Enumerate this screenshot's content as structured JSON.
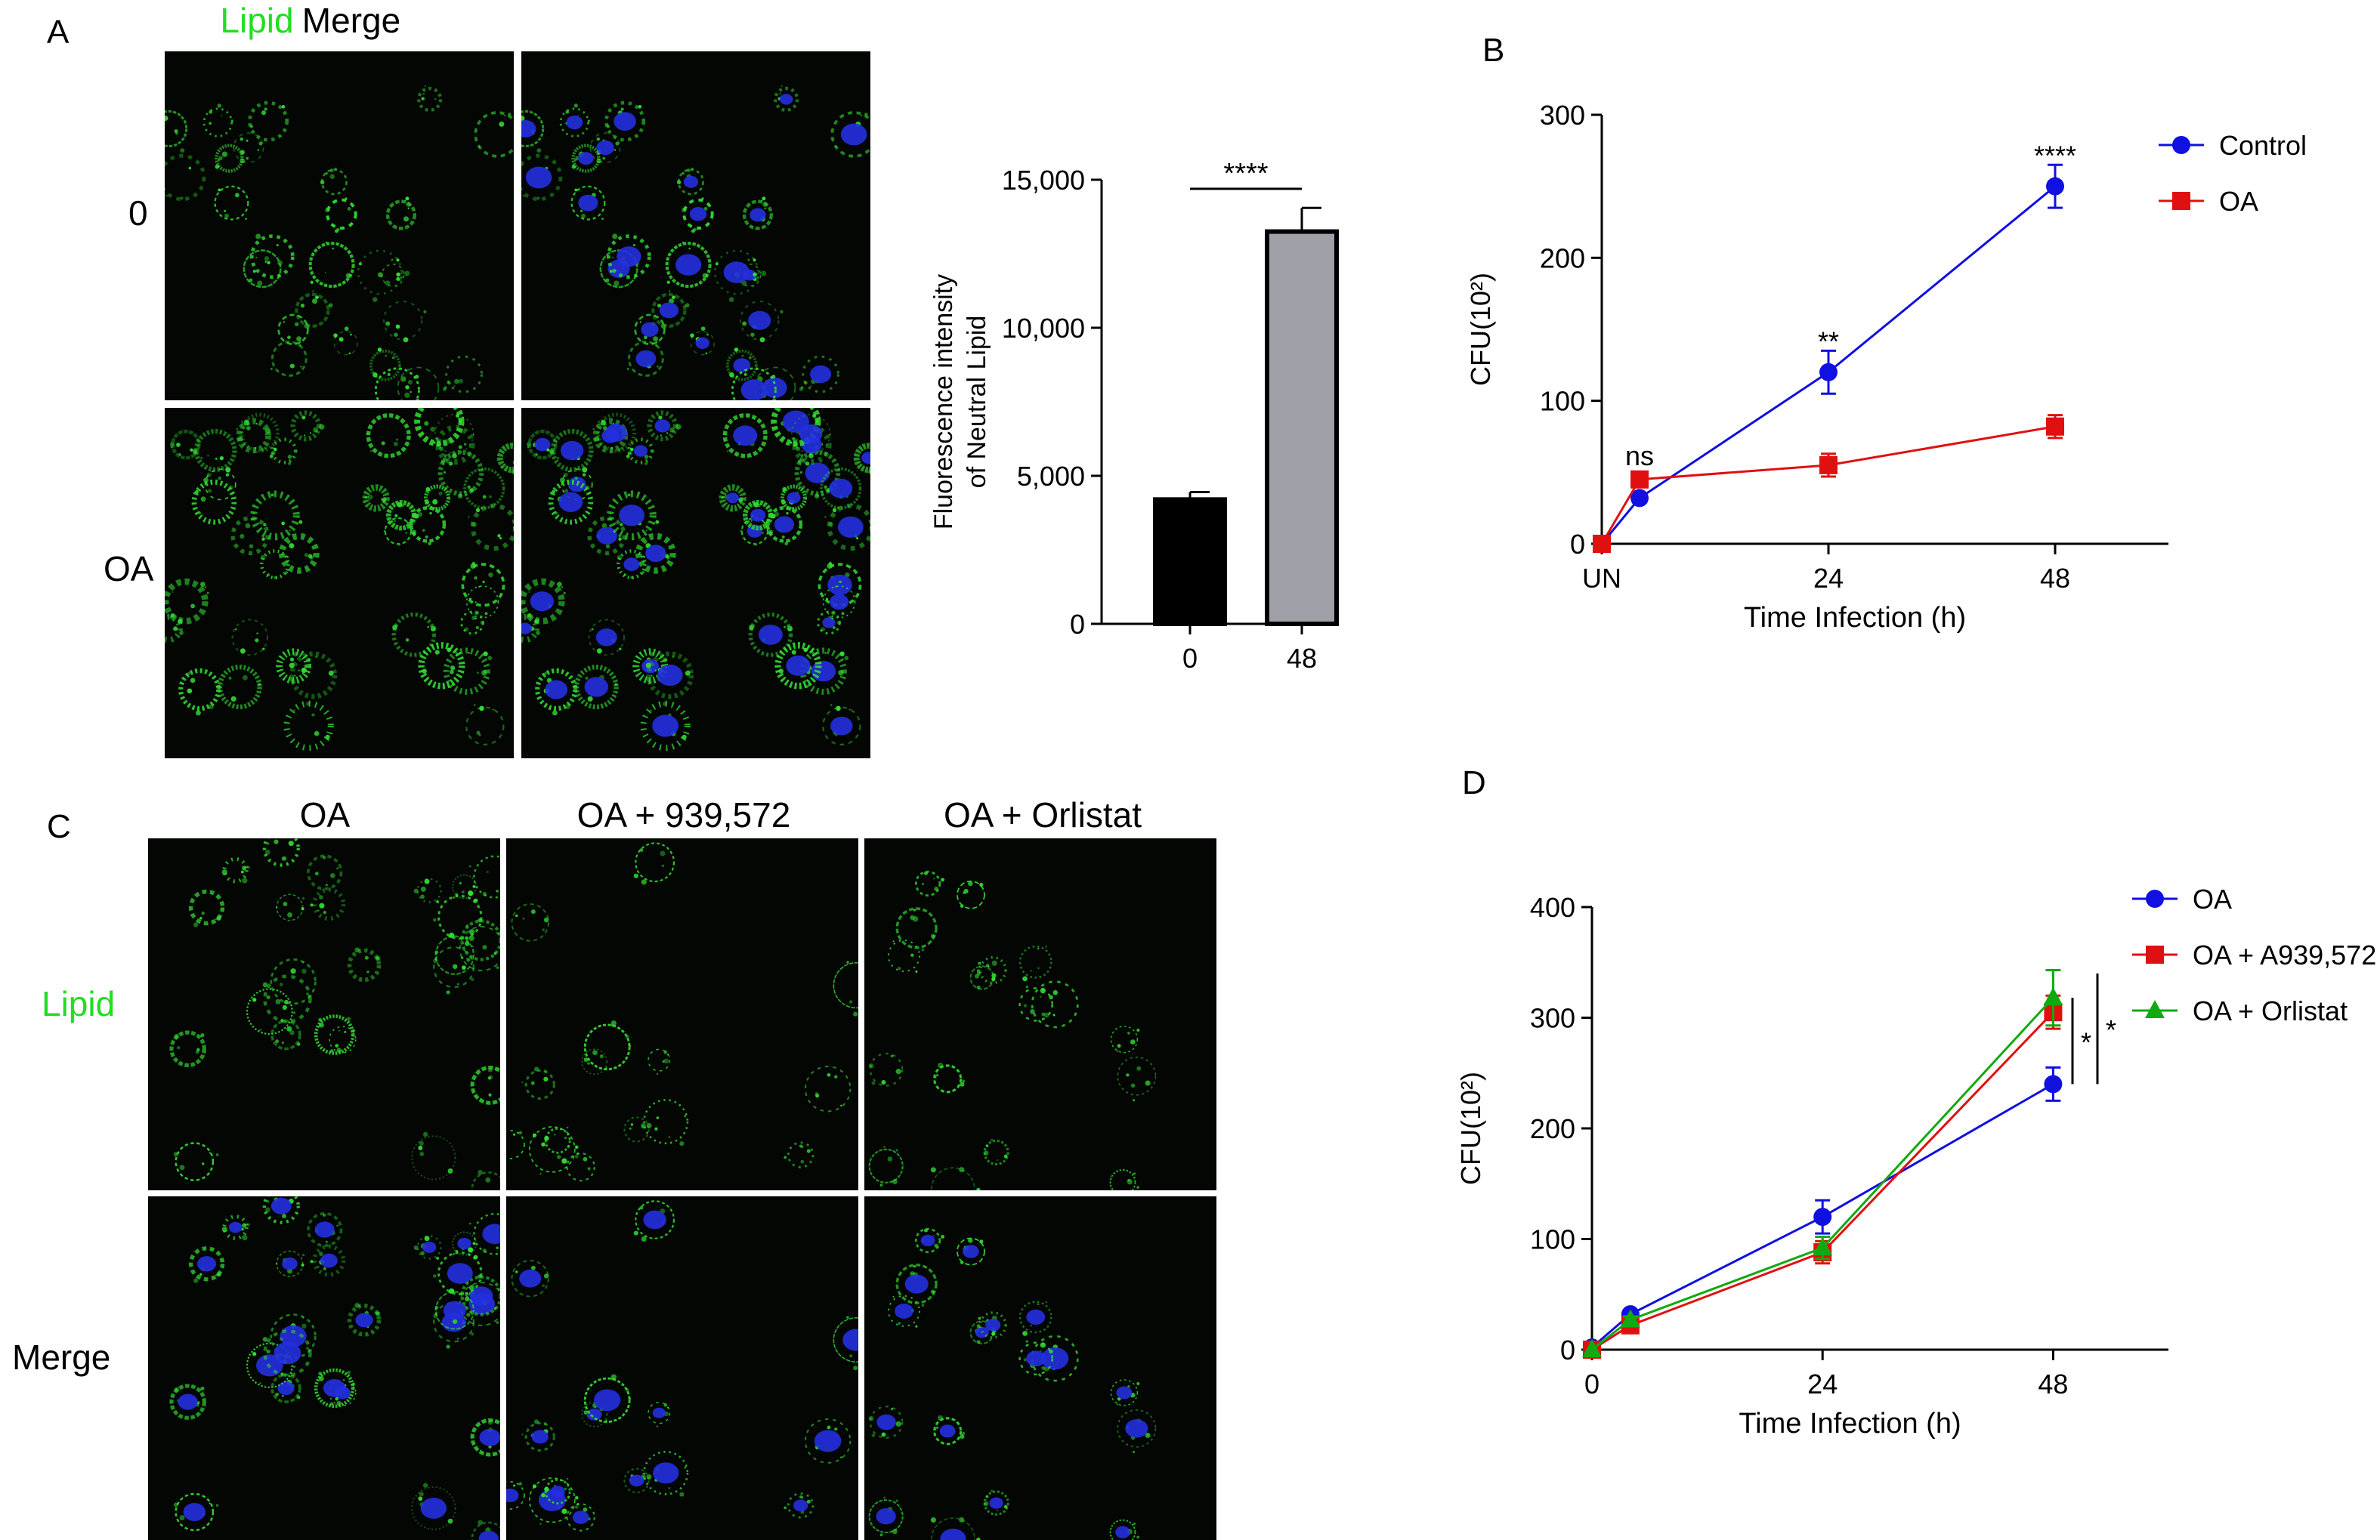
{
  "panels": {
    "A": {
      "letter": "A",
      "col_headers": [
        "Lipid",
        "Merge"
      ],
      "row_labels": [
        "0",
        "OA"
      ]
    },
    "B": {
      "letter": "B"
    },
    "C": {
      "letter": "C",
      "col_headers": [
        "OA",
        "OA + 939,572",
        "OA + Orlistat"
      ],
      "row_labels": [
        "Lipid",
        "Merge"
      ]
    },
    "D": {
      "letter": "D"
    }
  },
  "colors": {
    "lipid_label": "#22dd22",
    "lipid_stain": "#33dd33",
    "nucleus_stain": "#2430e0",
    "control": "#1010e0",
    "oa": "#e01010",
    "orlistat": "#10aa10",
    "bar_0": "#000000",
    "bar_48": "#a0a0a8"
  },
  "chart_data": [
    {
      "id": "A-bar",
      "type": "bar",
      "title": "",
      "xlabel": "",
      "ylabel": "Fluorescence intensity of Neutral Lipid",
      "ylabel_lines": [
        "Fluorescence intensity",
        "of Neutral Lipid"
      ],
      "categories": [
        "0",
        "48"
      ],
      "values": [
        4200,
        13250
      ],
      "errors": [
        250,
        800
      ],
      "ylim": [
        0,
        15000
      ],
      "yticks": [
        0,
        5000,
        10000,
        15000
      ],
      "ytick_labels": [
        "0",
        "5,000",
        "10,000",
        "15,000"
      ],
      "significance": [
        {
          "between": [
            "0",
            "48"
          ],
          "label": "****"
        }
      ],
      "grid": false
    },
    {
      "id": "B-line",
      "type": "line",
      "title": "",
      "xlabel": "Time Infection (h)",
      "ylabel": "CFU(10²)",
      "ylim": [
        0,
        300
      ],
      "yticks": [
        0,
        100,
        200,
        300
      ],
      "xlim": [
        0,
        60
      ],
      "xticks": [
        0,
        24,
        48
      ],
      "xtick_labels": [
        "UN",
        "24",
        "48"
      ],
      "legend": "top-right",
      "grid": false,
      "series": [
        {
          "name": "Control",
          "marker": "circle",
          "x": [
            0,
            4,
            24,
            48
          ],
          "y": [
            0,
            32,
            120,
            250
          ],
          "err": [
            0,
            3,
            15,
            15
          ]
        },
        {
          "name": "OA",
          "marker": "square",
          "x": [
            0,
            4,
            24,
            48
          ],
          "y": [
            0,
            45,
            55,
            82
          ],
          "err": [
            0,
            5,
            8,
            8
          ]
        }
      ],
      "annotations": [
        {
          "x": 4,
          "y": 55,
          "label": "ns"
        },
        {
          "x": 24,
          "y": 135,
          "label": "**"
        },
        {
          "x": 48,
          "y": 265,
          "label": "****"
        }
      ]
    },
    {
      "id": "D-line",
      "type": "line",
      "title": "",
      "xlabel": "Time Infection (h)",
      "ylabel": "CFU(10²)",
      "ylim": [
        0,
        400
      ],
      "yticks": [
        0,
        100,
        200,
        300,
        400
      ],
      "xlim": [
        0,
        60
      ],
      "xticks": [
        0,
        24,
        48
      ],
      "xtick_labels": [
        "0",
        "24",
        "48"
      ],
      "legend": "top-right",
      "grid": false,
      "series": [
        {
          "name": "OA",
          "marker": "circle",
          "x": [
            0,
            4,
            24,
            48
          ],
          "y": [
            2,
            32,
            120,
            240
          ],
          "err": [
            0,
            3,
            15,
            15
          ]
        },
        {
          "name": "OA + A939,572",
          "marker": "square",
          "x": [
            0,
            4,
            24,
            48
          ],
          "y": [
            0,
            22,
            88,
            305
          ],
          "err": [
            0,
            3,
            10,
            15
          ]
        },
        {
          "name": "OA + Orlistat",
          "marker": "triangle",
          "x": [
            0,
            4,
            24,
            48
          ],
          "y": [
            0,
            27,
            92,
            318
          ],
          "err": [
            0,
            3,
            10,
            25
          ]
        }
      ],
      "brackets": [
        {
          "from": 240,
          "to": 318,
          "label": "*"
        },
        {
          "from": 240,
          "to": 340,
          "label": "*"
        }
      ]
    }
  ]
}
